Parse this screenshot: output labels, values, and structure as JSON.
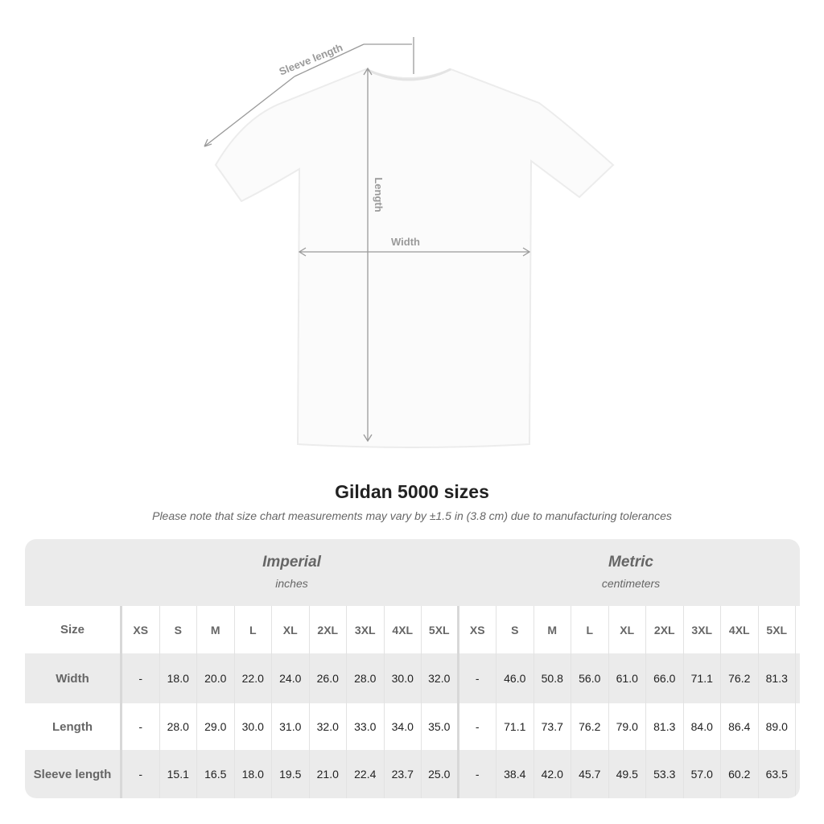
{
  "diagram": {
    "sleeve_label": "Sleeve length",
    "length_label": "Length",
    "width_label": "Width"
  },
  "title": "Gildan 5000 sizes",
  "note": "Please note that size chart measurements may vary by ±1.5 in (3.8 cm) due to manufacturing tolerances",
  "imperial": {
    "heading": "Imperial",
    "unit": "inches"
  },
  "metric": {
    "heading": "Metric",
    "unit": "centimeters"
  },
  "table": {
    "size_label": "Size",
    "sizes": [
      "XS",
      "S",
      "M",
      "L",
      "XL",
      "2XL",
      "3XL",
      "4XL",
      "5XL"
    ],
    "rows": [
      {
        "label": "Width",
        "imperial": [
          "-",
          "18.0",
          "20.0",
          "22.0",
          "24.0",
          "26.0",
          "28.0",
          "30.0",
          "32.0"
        ],
        "metric": [
          "-",
          "46.0",
          "50.8",
          "56.0",
          "61.0",
          "66.0",
          "71.1",
          "76.2",
          "81.3"
        ]
      },
      {
        "label": "Length",
        "imperial": [
          "-",
          "28.0",
          "29.0",
          "30.0",
          "31.0",
          "32.0",
          "33.0",
          "34.0",
          "35.0"
        ],
        "metric": [
          "-",
          "71.1",
          "73.7",
          "76.2",
          "79.0",
          "81.3",
          "84.0",
          "86.4",
          "89.0"
        ]
      },
      {
        "label": "Sleeve length",
        "imperial": [
          "-",
          "15.1",
          "16.5",
          "18.0",
          "19.5",
          "21.0",
          "22.4",
          "23.7",
          "25.0"
        ],
        "metric": [
          "-",
          "38.4",
          "42.0",
          "45.7",
          "49.5",
          "53.3",
          "57.0",
          "60.2",
          "63.5"
        ]
      }
    ]
  }
}
